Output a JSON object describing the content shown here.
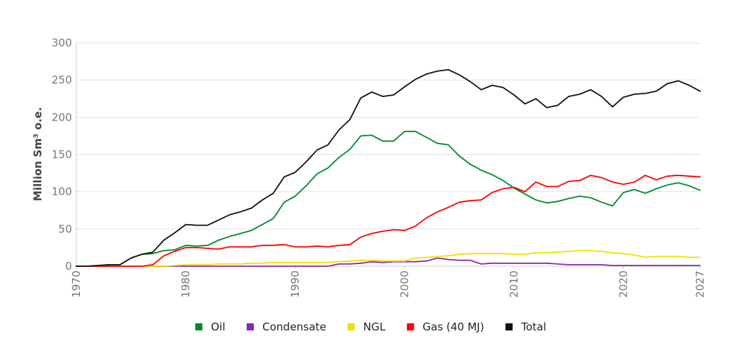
{
  "chart_data": {
    "type": "line",
    "title": "",
    "ylabel": "Million Sm³ o.e.",
    "xlabel": "",
    "xlim": [
      1970,
      2027
    ],
    "ylim": [
      0,
      300
    ],
    "x_ticks": [
      "1970",
      "1980",
      "1990",
      "2000",
      "2010",
      "2020",
      "2027"
    ],
    "y_ticks": [
      "0",
      "50",
      "100",
      "150",
      "200",
      "250",
      "300"
    ],
    "grid": true,
    "legend_position": "bottom",
    "x": [
      1970,
      1971,
      1972,
      1973,
      1974,
      1975,
      1976,
      1977,
      1978,
      1979,
      1980,
      1981,
      1982,
      1983,
      1984,
      1985,
      1986,
      1987,
      1988,
      1989,
      1990,
      1991,
      1992,
      1993,
      1994,
      1995,
      1996,
      1997,
      1998,
      1999,
      2000,
      2001,
      2002,
      2003,
      2004,
      2005,
      2006,
      2007,
      2008,
      2009,
      2010,
      2011,
      2012,
      2013,
      2014,
      2015,
      2016,
      2017,
      2018,
      2019,
      2020,
      2021,
      2022,
      2023,
      2024,
      2025,
      2026,
      2027
    ],
    "series": [
      {
        "name": "Oil",
        "color": "#008a2e",
        "values": [
          0,
          0,
          1,
          2,
          2,
          11,
          16,
          17,
          21,
          22,
          28,
          27,
          28,
          35,
          40,
          44,
          48,
          56,
          64,
          86,
          94,
          108,
          124,
          132,
          146,
          157,
          175,
          176,
          168,
          168,
          181,
          181,
          173,
          165,
          163,
          148,
          137,
          129,
          123,
          115,
          105,
          97,
          89,
          85,
          87,
          91,
          94,
          92,
          86,
          81,
          99,
          103,
          98,
          104,
          109,
          112,
          108,
          102
        ]
      },
      {
        "name": "Condensate",
        "color": "#8a2aa8",
        "values": [
          0,
          0,
          0,
          0,
          0,
          0,
          0,
          0,
          0,
          0,
          0,
          0,
          0,
          0,
          0,
          0,
          0,
          0,
          0,
          0,
          0,
          0,
          0,
          0,
          3,
          3,
          4,
          6,
          5,
          6,
          6,
          6,
          7,
          11,
          9,
          8,
          8,
          3,
          4,
          4,
          4,
          4,
          4,
          4,
          3,
          2,
          2,
          2,
          2,
          1,
          1,
          1,
          1,
          1,
          1,
          1,
          1,
          1
        ]
      },
      {
        "name": "NGL",
        "color": "#f0e000",
        "values": [
          0,
          0,
          0,
          0,
          0,
          0,
          0,
          0,
          0,
          1,
          2,
          2,
          2,
          3,
          3,
          3,
          4,
          4,
          5,
          5,
          5,
          5,
          5,
          5,
          6,
          7,
          8,
          8,
          7,
          7,
          7,
          11,
          12,
          13,
          14,
          16,
          17,
          17,
          17,
          17,
          16,
          16,
          18,
          18,
          19,
          20,
          21,
          21,
          20,
          18,
          17,
          15,
          12,
          13,
          13,
          13,
          12,
          12
        ]
      },
      {
        "name": "Gas (40 MJ)",
        "color": "#ff0000",
        "values": [
          0,
          0,
          0,
          0,
          0,
          0,
          0,
          2,
          14,
          20,
          25,
          25,
          24,
          23,
          26,
          26,
          26,
          28,
          28,
          29,
          26,
          26,
          27,
          26,
          28,
          29,
          39,
          44,
          47,
          49,
          48,
          54,
          65,
          73,
          79,
          86,
          88,
          89,
          99,
          104,
          106,
          100,
          113,
          107,
          107,
          114,
          115,
          122,
          119,
          113,
          110,
          113,
          122,
          116,
          121,
          122,
          121,
          120
        ]
      },
      {
        "name": "Total",
        "color": "#111111",
        "values": [
          0,
          0,
          1,
          2,
          2,
          11,
          16,
          19,
          35,
          45,
          56,
          55,
          55,
          62,
          69,
          73,
          78,
          89,
          98,
          120,
          126,
          140,
          156,
          163,
          183,
          197,
          226,
          234,
          228,
          230,
          241,
          251,
          258,
          262,
          264,
          257,
          248,
          237,
          243,
          240,
          230,
          218,
          225,
          213,
          216,
          228,
          231,
          237,
          228,
          214,
          227,
          231,
          232,
          235,
          245,
          249,
          243,
          235
        ]
      }
    ]
  }
}
